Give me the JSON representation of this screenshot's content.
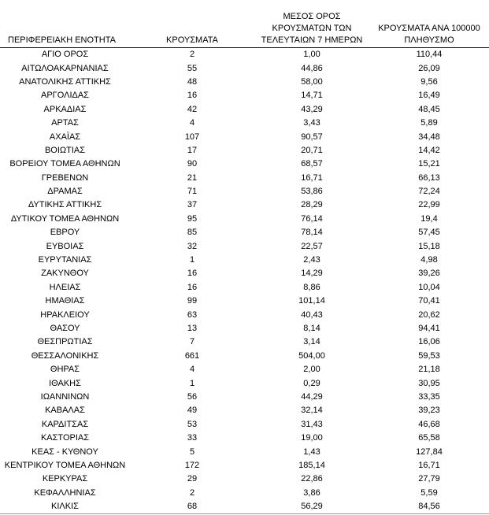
{
  "table": {
    "headers": [
      "ΠΕΡΙΦΕΡΕΙΑΚΗ ΕΝΟΤΗΤΑ",
      "ΚΡΟΥΣΜΑΤΑ",
      [
        "ΜΕΣΟΣ ΟΡΟΣ",
        "ΚΡΟΥΣΜΑΤΩΝ ΤΩΝ",
        "ΤΕΛΕΥΤΑΙΩΝ 7 ΗΜΕΡΩΝ"
      ],
      [
        "ΚΡΟΥΣΜΑΤΑ ΑΝΑ 100000",
        "ΠΛΗΘΥΣΜΟ"
      ]
    ],
    "rows": [
      [
        "ΑΓΙΟ ΟΡΟΣ",
        "2",
        "1,00",
        "110,44"
      ],
      [
        "ΑΙΤΩΛΟΑΚΑΡΝΑΝΙΑΣ",
        "55",
        "44,86",
        "26,09"
      ],
      [
        "ΑΝΑΤΟΛΙΚΗΣ ΑΤΤΙΚΗΣ",
        "48",
        "58,00",
        "9,56"
      ],
      [
        "ΑΡΓΟΛΙΔΑΣ",
        "16",
        "14,71",
        "16,49"
      ],
      [
        "ΑΡΚΑΔΙΑΣ",
        "42",
        "43,29",
        "48,45"
      ],
      [
        "ΑΡΤΑΣ",
        "4",
        "3,43",
        "5,89"
      ],
      [
        "ΑΧΑΪΑΣ",
        "107",
        "90,57",
        "34,48"
      ],
      [
        "ΒΟΙΩΤΙΑΣ",
        "17",
        "20,71",
        "14,42"
      ],
      [
        "ΒΟΡΕΙΟΥ ΤΟΜΕΑ ΑΘΗΝΩΝ",
        "90",
        "68,57",
        "15,21"
      ],
      [
        "ΓΡΕΒΕΝΩΝ",
        "21",
        "16,71",
        "66,13"
      ],
      [
        "ΔΡΑΜΑΣ",
        "71",
        "53,86",
        "72,24"
      ],
      [
        "ΔΥΤΙΚΗΣ ΑΤΤΙΚΗΣ",
        "37",
        "28,29",
        "22,99"
      ],
      [
        "ΔΥΤΙΚΟΥ ΤΟΜΕΑ ΑΘΗΝΩΝ",
        "95",
        "76,14",
        "19,4"
      ],
      [
        "ΕΒΡΟΥ",
        "85",
        "78,14",
        "57,45"
      ],
      [
        "ΕΥΒΟΙΑΣ",
        "32",
        "22,57",
        "15,18"
      ],
      [
        "ΕΥΡΥΤΑΝΙΑΣ",
        "1",
        "2,43",
        "4,98"
      ],
      [
        "ΖΑΚΥΝΘΟΥ",
        "16",
        "14,29",
        "39,26"
      ],
      [
        "ΗΛΕΙΑΣ",
        "16",
        "8,86",
        "10,04"
      ],
      [
        "ΗΜΑΘΙΑΣ",
        "99",
        "101,14",
        "70,41"
      ],
      [
        "ΗΡΑΚΛΕΙΟΥ",
        "63",
        "40,43",
        "20,62"
      ],
      [
        "ΘΑΣΟΥ",
        "13",
        "8,14",
        "94,41"
      ],
      [
        "ΘΕΣΠΡΩΤΙΑΣ",
        "7",
        "3,14",
        "16,06"
      ],
      [
        "ΘΕΣΣΑΛΟΝΙΚΗΣ",
        "661",
        "504,00",
        "59,53"
      ],
      [
        "ΘΗΡΑΣ",
        "4",
        "2,00",
        "21,18"
      ],
      [
        "ΙΘΑΚΗΣ",
        "1",
        "0,29",
        "30,95"
      ],
      [
        "ΙΩΑΝΝΙΝΩΝ",
        "56",
        "44,29",
        "33,35"
      ],
      [
        "ΚΑΒΑΛΑΣ",
        "49",
        "32,14",
        "39,23"
      ],
      [
        "ΚΑΡΔΙΤΣΑΣ",
        "53",
        "31,43",
        "46,68"
      ],
      [
        "ΚΑΣΤΟΡΙΑΣ",
        "33",
        "19,00",
        "65,58"
      ],
      [
        "ΚΕΑΣ - ΚΥΘΝΟΥ",
        "5",
        "1,43",
        "127,84"
      ],
      [
        "ΚΕΝΤΡΙΚΟΥ ΤΟΜΕΑ ΑΘΗΝΩΝ",
        "172",
        "185,14",
        "16,71"
      ],
      [
        "ΚΕΡΚΥΡΑΣ",
        "29",
        "22,86",
        "27,79"
      ],
      [
        "ΚΕΦΑΛΛΗΝΙΑΣ",
        "2",
        "3,86",
        "5,59"
      ],
      [
        "ΚΙΛΚΙΣ",
        "68",
        "56,29",
        "84,56"
      ]
    ]
  }
}
